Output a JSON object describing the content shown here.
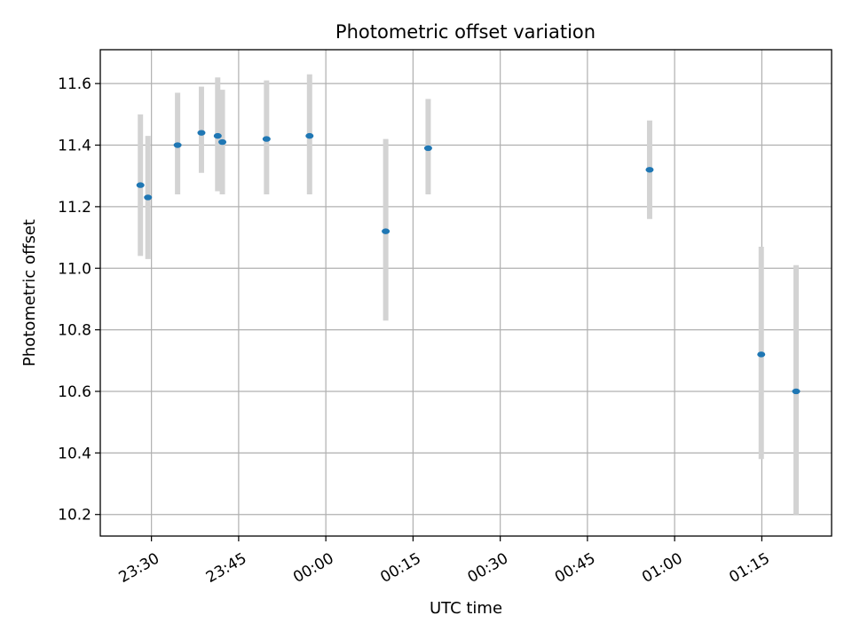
{
  "chart_data": {
    "type": "scatter",
    "title": "Photometric offset variation",
    "xlabel": "UTC time",
    "ylabel": "Photometric offset",
    "x_ticks": [
      "23:30",
      "23:45",
      "00:00",
      "00:15",
      "00:30",
      "00:45",
      "01:00",
      "01:15"
    ],
    "y_ticks": [
      "10.2",
      "10.4",
      "10.6",
      "10.8",
      "11.0",
      "11.2",
      "11.4",
      "11.6"
    ],
    "x_range": [
      "23:21:12",
      "01:27:00"
    ],
    "ylim": [
      10.13,
      11.71
    ],
    "grid": true,
    "legend": "none",
    "colors": {
      "point": "#1f77b4",
      "errorbar": "#d3d3d3",
      "grid": "#b0b0b0"
    },
    "points": [
      {
        "x": "23:28:06",
        "y": 11.27,
        "ylow": 11.04,
        "yhigh": 11.5
      },
      {
        "x": "23:29:24",
        "y": 11.23,
        "ylow": 11.03,
        "yhigh": 11.43
      },
      {
        "x": "23:34:30",
        "y": 11.4,
        "ylow": 11.24,
        "yhigh": 11.57
      },
      {
        "x": "23:38:36",
        "y": 11.44,
        "ylow": 11.31,
        "yhigh": 11.59
      },
      {
        "x": "23:41:24",
        "y": 11.43,
        "ylow": 11.25,
        "yhigh": 11.62
      },
      {
        "x": "23:42:12",
        "y": 11.41,
        "ylow": 11.24,
        "yhigh": 11.58
      },
      {
        "x": "23:49:48",
        "y": 11.42,
        "ylow": 11.24,
        "yhigh": 11.61
      },
      {
        "x": "23:57:12",
        "y": 11.43,
        "ylow": 11.24,
        "yhigh": 11.63
      },
      {
        "x": "00:10:18",
        "y": 11.12,
        "ylow": 10.83,
        "yhigh": 11.42
      },
      {
        "x": "00:17:36",
        "y": 11.39,
        "ylow": 11.24,
        "yhigh": 11.55
      },
      {
        "x": "00:55:42",
        "y": 11.32,
        "ylow": 11.16,
        "yhigh": 11.48
      },
      {
        "x": "01:14:54",
        "y": 10.72,
        "ylow": 10.38,
        "yhigh": 11.07
      },
      {
        "x": "01:20:54",
        "y": 10.6,
        "ylow": 10.2,
        "yhigh": 11.01
      }
    ]
  }
}
